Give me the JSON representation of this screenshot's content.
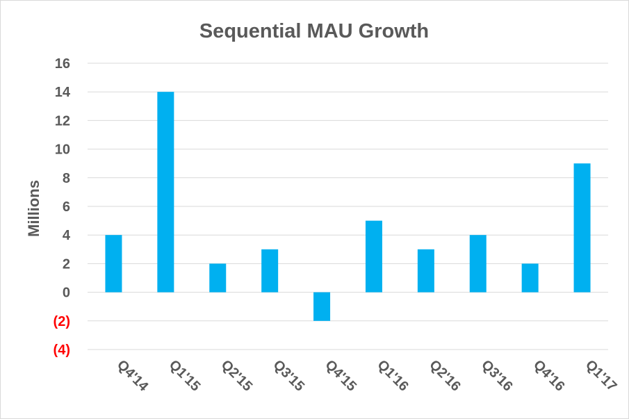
{
  "chart_data": {
    "type": "bar",
    "title": "Sequential MAU Growth",
    "xlabel": "",
    "ylabel": "Millions",
    "categories": [
      "Q4'14",
      "Q1'15",
      "Q2'15",
      "Q3'15",
      "Q4'15",
      "Q1'16",
      "Q2'16",
      "Q3'16",
      "Q4'16",
      "Q1'17"
    ],
    "values": [
      4,
      14,
      2,
      3,
      -2,
      5,
      3,
      4,
      2,
      9
    ],
    "ylim": [
      -4,
      16
    ],
    "yticks": [
      {
        "value": 16,
        "label": "16"
      },
      {
        "value": 14,
        "label": "14"
      },
      {
        "value": 12,
        "label": "12"
      },
      {
        "value": 10,
        "label": "10"
      },
      {
        "value": 8,
        "label": "8"
      },
      {
        "value": 6,
        "label": "6"
      },
      {
        "value": 4,
        "label": "4"
      },
      {
        "value": 2,
        "label": "2"
      },
      {
        "value": 0,
        "label": "0"
      },
      {
        "value": -2,
        "label": "(2)"
      },
      {
        "value": -4,
        "label": "(4)"
      }
    ],
    "grid": true,
    "legend": "none",
    "colors": {
      "bar": "#00b0f0",
      "grid": "#d9d9d9",
      "text": "#595959",
      "negative_tick": "#ff0000"
    }
  }
}
